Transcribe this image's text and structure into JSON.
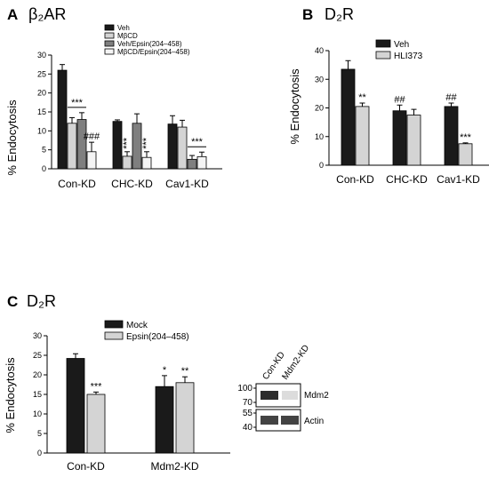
{
  "chart_data": [
    {
      "id": "A",
      "type": "bar",
      "panel_label": "A",
      "title": "β₂AR",
      "ylabel": "% Endocytosis",
      "ylim": [
        0,
        30
      ],
      "yticks": [
        0,
        5,
        10,
        15,
        20,
        25,
        30
      ],
      "categories": [
        "Con-KD",
        "CHC-KD",
        "Cav1-KD"
      ],
      "legend_position": "top-right",
      "series": [
        {
          "name": "Veh",
          "color": "#1a1a1a",
          "values": [
            26,
            12.5,
            11.8
          ],
          "errors": [
            1.5,
            0.4,
            2.2
          ]
        },
        {
          "name": "MβCD",
          "color": "#d4d4d4",
          "values": [
            12,
            3.3,
            11
          ],
          "errors": [
            1.5,
            1.2,
            1.8
          ]
        },
        {
          "name": "Veh/Epsin(204–458)",
          "color": "#7f7f7f",
          "values": [
            13,
            12,
            2.5
          ],
          "errors": [
            1.8,
            2.5,
            1.0
          ]
        },
        {
          "name": "MβCD/Epsin(204–458)",
          "color": "#f4f4f4",
          "values": [
            4.5,
            3,
            3.2
          ],
          "errors": [
            2.5,
            1.5,
            1.2
          ]
        }
      ],
      "annotations": [
        {
          "text": "***",
          "category": 0,
          "span": [
            1,
            2
          ]
        },
        {
          "text": "###",
          "category": 0,
          "series": 3
        },
        {
          "text": "***",
          "category": 1,
          "series": 1,
          "vertical": true
        },
        {
          "text": "***",
          "category": 1,
          "series": 3,
          "vertical": true
        },
        {
          "text": "***",
          "category": 2,
          "span": [
            2,
            3
          ]
        }
      ]
    },
    {
      "id": "B",
      "type": "bar",
      "panel_label": "B",
      "title": "D₂R",
      "ylabel": "% Endocytosis",
      "ylim": [
        0,
        40
      ],
      "yticks": [
        0,
        10,
        20,
        30,
        40
      ],
      "categories": [
        "Con-KD",
        "CHC-KD",
        "Cav1-KD"
      ],
      "legend_position": "top",
      "series": [
        {
          "name": "Veh",
          "color": "#1a1a1a",
          "values": [
            33.5,
            19,
            20.5
          ],
          "errors": [
            3,
            2,
            1.2
          ]
        },
        {
          "name": "HLI373",
          "color": "#d4d4d4",
          "values": [
            20.5,
            17.5,
            7.5
          ],
          "errors": [
            1.2,
            2,
            0.3
          ]
        }
      ],
      "annotations": [
        {
          "text": "**",
          "category": 0,
          "series": 1
        },
        {
          "text": "##",
          "category": 1,
          "series": 0
        },
        {
          "text": "##",
          "category": 2,
          "series": 0
        },
        {
          "text": "***",
          "category": 2,
          "series": 1
        }
      ]
    },
    {
      "id": "C",
      "type": "bar",
      "panel_label": "C",
      "title": "D₂R",
      "ylabel": "% Endocytosis",
      "ylim": [
        0,
        30
      ],
      "yticks": [
        0,
        5,
        10,
        15,
        20,
        25,
        30
      ],
      "categories": [
        "Con-KD",
        "Mdm2-KD"
      ],
      "legend_position": "top",
      "series": [
        {
          "name": "Mock",
          "color": "#1a1a1a",
          "values": [
            24.2,
            17
          ],
          "errors": [
            1.2,
            2.8
          ]
        },
        {
          "name": "Epsin(204–458)",
          "color": "#d4d4d4",
          "values": [
            15,
            18
          ],
          "errors": [
            0.6,
            1.5
          ]
        }
      ],
      "annotations": [
        {
          "text": "***",
          "category": 0,
          "series": 1
        },
        {
          "text": "*",
          "category": 1,
          "series": 0
        },
        {
          "text": "**",
          "category": 1,
          "series": 1
        }
      ]
    }
  ],
  "blot": {
    "lanes": [
      "Con-KD",
      "Mdm2-KD"
    ],
    "rows": [
      {
        "label": "Mdm2",
        "markers": [
          "100",
          "70"
        ],
        "intensity": [
          0.9,
          0.15
        ]
      },
      {
        "label": "Actin",
        "markers": [
          "55",
          "40"
        ],
        "intensity": [
          0.8,
          0.8
        ]
      }
    ]
  }
}
